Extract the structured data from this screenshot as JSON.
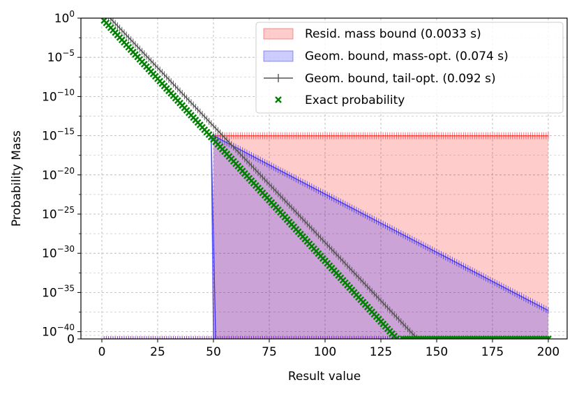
{
  "chart_data": {
    "type": "line",
    "xlabel": "Result value",
    "ylabel": "Probability Mass",
    "xlim": [
      -8,
      209
    ],
    "x_ticks": [
      "0",
      "25",
      "50",
      "75",
      "100",
      "125",
      "150",
      "175",
      "200"
    ],
    "y_scale": "symlog",
    "y_ticks": [
      {
        "base": "10",
        "exp": "0"
      },
      {
        "base": "10",
        "exp": "−5"
      },
      {
        "base": "10",
        "exp": "−10"
      },
      {
        "base": "10",
        "exp": "−15"
      },
      {
        "base": "10",
        "exp": "−20"
      },
      {
        "base": "10",
        "exp": "−25"
      },
      {
        "base": "10",
        "exp": "−30"
      },
      {
        "base": "10",
        "exp": "−35"
      },
      {
        "base": "10",
        "exp": "−40"
      },
      {
        "base": "0",
        "exp": ""
      }
    ],
    "grid": true,
    "legend_position": "upper right",
    "series": [
      {
        "name": "Resid. mass bound (0.0033 s)",
        "kind": "filled",
        "color": "#ff0000",
        "description": "log10 p = -15 for x in 50..200; 0 elsewhere",
        "x_start": 50,
        "x_end": 200,
        "log10_value": -15
      },
      {
        "name": "Geom. bound, mass-opt. (0.074 s)",
        "kind": "filled",
        "color": "#0000ff",
        "description": "log10 p = -15 at x=50 decreasing linearly to -37 at x=200; 0 for x<51",
        "points": [
          [
            50,
            -15
          ],
          [
            200,
            -37.3
          ]
        ]
      },
      {
        "name": "Geom. bound, tail-opt. (0.092 s)",
        "kind": "line",
        "color": "#000000",
        "description": "log10 p ≈ 0.7 at x=1 decreasing linearly to -41.7 at x=144; 0 after",
        "points": [
          [
            1,
            0.8
          ],
          [
            144,
            -41.7
          ]
        ]
      },
      {
        "name": "Exact probability",
        "kind": "scatter",
        "color": "#008000",
        "description": "log10 p = -0.3 at x=1 decreasing linearly to -41.5 at x=134; 0 after",
        "points": [
          [
            1,
            -0.3
          ],
          [
            134,
            -41.5
          ]
        ]
      }
    ]
  }
}
